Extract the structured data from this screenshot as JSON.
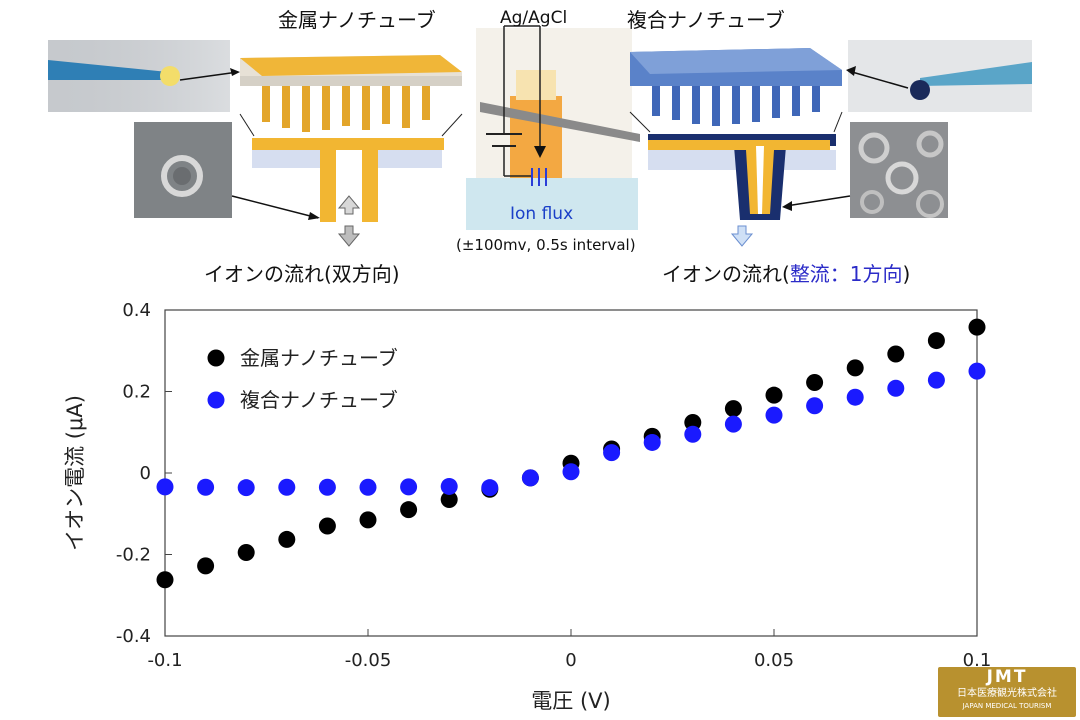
{
  "figure": {
    "metal_label": "金属ナノチューブ",
    "composite_label": "複合ナノチューブ",
    "electrode_label": "Ag/AgCl",
    "ion_flux_label": "Ion flux",
    "pulse_label": "(±100mv, 0.5s interval)",
    "metal_flow_caption": "イオンの流れ(双方向)",
    "composite_flow_prefix": "イオンの流れ(",
    "composite_flow_highlight": "整流：1方向",
    "composite_flow_suffix": ")"
  },
  "logo": {
    "mark": "JMT",
    "line1": "日本医療観光株式会社",
    "line2": "JAPAN MEDICAL TOURISM"
  },
  "colors": {
    "metal_series": "#000000",
    "composite_series": "#1a1aff",
    "metal_tube": "#f2b632",
    "composite_outer": "#1a2f6e",
    "composite_top": "#4a72c4",
    "highlight_text": "#2b2bc8"
  },
  "chart_data": {
    "type": "scatter",
    "xlabel": "電圧 (V)",
    "ylabel": "イオン電流 (μA)",
    "xlim": [
      -0.1,
      0.1
    ],
    "ylim": [
      -0.4,
      0.4
    ],
    "x_ticks": [
      -0.1,
      -0.05,
      0,
      0.05,
      0.1
    ],
    "x_tick_labels": [
      "-0.1",
      "-0.05",
      "0",
      "0.05",
      "0.1"
    ],
    "y_ticks": [
      0.4,
      0.2,
      0,
      -0.2,
      -0.4
    ],
    "y_tick_labels": [
      "0.4",
      "0.2",
      "0",
      "-0.2",
      "-0.4"
    ],
    "grid": false,
    "legend_position": "top-left",
    "x": [
      -0.1,
      -0.09,
      -0.08,
      -0.07,
      -0.06,
      -0.05,
      -0.04,
      -0.03,
      -0.02,
      -0.01,
      0,
      0.01,
      0.02,
      0.03,
      0.04,
      0.05,
      0.06,
      0.07,
      0.08,
      0.09,
      0.1
    ],
    "series": [
      {
        "name": "金属ナノチューブ",
        "color": "#000000",
        "values": [
          -0.262,
          -0.228,
          -0.195,
          -0.163,
          -0.13,
          -0.115,
          -0.09,
          -0.065,
          -0.04,
          -0.012,
          0.024,
          0.059,
          0.09,
          0.124,
          0.158,
          0.191,
          0.222,
          0.258,
          0.292,
          0.325,
          0.358
        ]
      },
      {
        "name": "複合ナノチューブ",
        "color": "#1a1aff",
        "values": [
          -0.034,
          -0.035,
          -0.036,
          -0.035,
          -0.035,
          -0.035,
          -0.034,
          -0.033,
          -0.036,
          -0.012,
          0.003,
          0.05,
          0.075,
          0.095,
          0.12,
          0.142,
          0.165,
          0.186,
          0.208,
          0.228,
          0.25
        ]
      }
    ]
  }
}
